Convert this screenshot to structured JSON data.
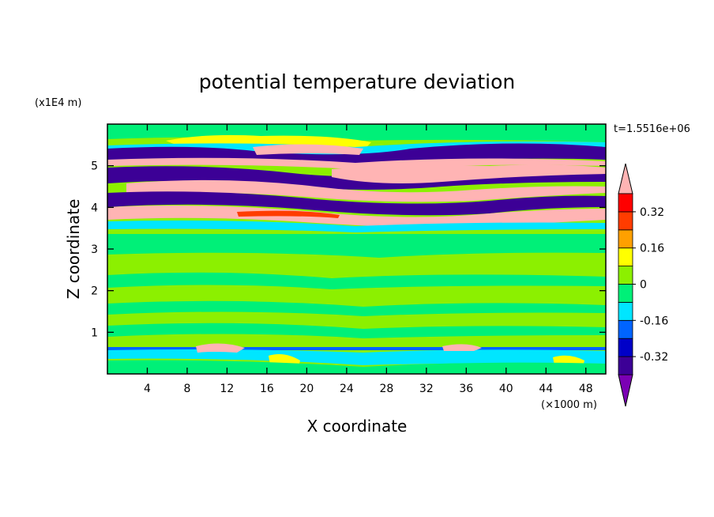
{
  "chart_data": {
    "type": "heatmap",
    "title": "potential temperature deviation",
    "xlabel": "X coordinate",
    "ylabel": "Z coordinate",
    "x_unit": "(×1000 m)",
    "y_unit": "(x1E4 m)",
    "time_label": "t=1.5516e+06",
    "xlim": [
      0,
      50
    ],
    "ylim": [
      0,
      6
    ],
    "x_ticks": [
      "4",
      "8",
      "12",
      "16",
      "20",
      "24",
      "28",
      "32",
      "36",
      "40",
      "44",
      "48"
    ],
    "x_tick_values": [
      4,
      8,
      12,
      16,
      20,
      24,
      28,
      32,
      36,
      40,
      44,
      48
    ],
    "y_ticks": [
      "1",
      "2",
      "3",
      "4",
      "5"
    ],
    "y_tick_values": [
      1,
      2,
      3,
      4,
      5
    ],
    "colorbar": {
      "labels": [
        "0.32",
        "0.16",
        "0",
        "-0.16",
        "-0.32"
      ],
      "label_values": [
        0.32,
        0.16,
        0,
        -0.16,
        -0.32
      ],
      "levels": [
        -0.4,
        -0.32,
        -0.24,
        -0.16,
        -0.08,
        0,
        0.08,
        0.16,
        0.24,
        0.32,
        0.4
      ],
      "colors": [
        "#7b00b4",
        "#3c0096",
        "#0000c8",
        "#0064ff",
        "#00e6ff",
        "#00f078",
        "#8cf000",
        "#ffff00",
        "#ffa000",
        "#ff3c00",
        "#ff0000",
        "#ffb4b4"
      ],
      "extend": "both"
    },
    "bands": [
      {
        "z": [
          0.0,
          0.6
        ],
        "description": "mixed green / yellow near surface"
      },
      {
        "z": [
          0.6,
          0.65
        ],
        "value": -0.2,
        "color": "#0064ff"
      },
      {
        "z": [
          0.65,
          3.5
        ],
        "value": 0.04,
        "color": "#8cf000"
      },
      {
        "z": [
          3.5,
          3.6
        ],
        "value": -0.12,
        "color": "#00e6ff"
      },
      {
        "z": [
          3.6,
          5.5
        ],
        "description": "alternating layers of +0.4 and -0.4"
      },
      {
        "z": [
          5.5,
          6.0
        ],
        "value": 0.04,
        "color": "#8cf000"
      }
    ]
  }
}
